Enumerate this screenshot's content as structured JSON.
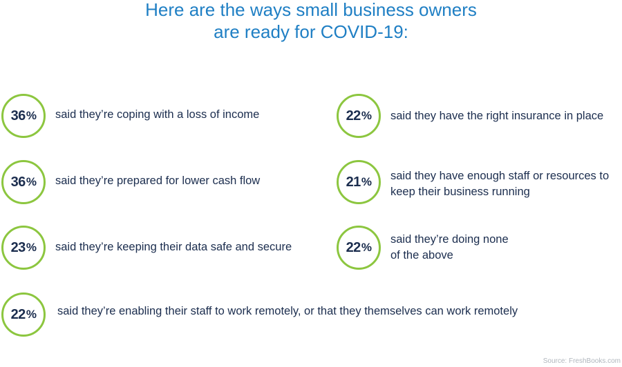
{
  "title": {
    "line1": "Here are the ways small business owners",
    "line2": "are ready for COVID-19:"
  },
  "stats": [
    {
      "value": "36",
      "unit": "%",
      "line1": "said they’re coping with a loss of income",
      "line2": ""
    },
    {
      "value": "36",
      "unit": "%",
      "line1": "said they’re prepared for lower cash flow",
      "line2": ""
    },
    {
      "value": "23",
      "unit": "%",
      "line1": "said they’re keeping their data safe and secure",
      "line2": ""
    },
    {
      "value": "22",
      "unit": "%",
      "line1": "said they have the right insurance in place",
      "line2": ""
    },
    {
      "value": "21",
      "unit": "%",
      "line1": "said they have enough staff or resources to",
      "line2": "keep their business running"
    },
    {
      "value": "22",
      "unit": "%",
      "line1": "said they’re doing none",
      "line2": "of the above"
    },
    {
      "value": "22",
      "unit": "%",
      "line1": "said they’re enabling their staff to work remotely, or that they themselves can work remotely",
      "line2": ""
    }
  ],
  "source": "Source: FreshBooks.com",
  "colors": {
    "title": "#1f7fc4",
    "circle_border": "#8cc63f",
    "text": "#1b2d4e",
    "source": "#b0b6bd"
  }
}
